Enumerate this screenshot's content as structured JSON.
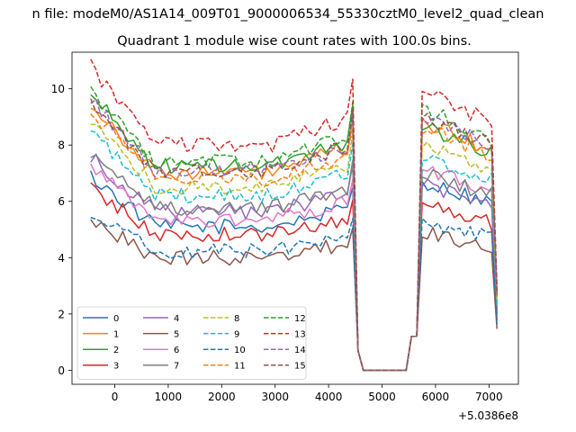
{
  "chart_data": {
    "type": "line",
    "suptitle": "n file: modeM0/AS1A14_009T01_9000006534_55330cztM0_level2_quad_clean",
    "title": "Quadrant 1 module wise count rates with 100.0s bins.",
    "xlabel": "",
    "ylabel": "",
    "x_offset_label": "+5.0386e8",
    "xlim": [
      -800,
      7550
    ],
    "ylim": [
      -0.5,
      11.3
    ],
    "xticks": [
      0,
      1000,
      2000,
      3000,
      4000,
      5000,
      6000,
      7000
    ],
    "yticks": [
      0,
      2,
      4,
      6,
      8,
      10
    ],
    "grid": false,
    "legend": {
      "placement": "lower-left",
      "columns": 4
    },
    "time_bins": {
      "start": -450,
      "step": 100,
      "count": 77
    },
    "gap": {
      "from": 4550,
      "to": 5550,
      "value": 0
    },
    "series": [
      {
        "name": "0",
        "color": "#1f77b4",
        "style": "solid",
        "base": 6.9,
        "rise": 6.7
      },
      {
        "name": "1",
        "color": "#ff7f0e",
        "style": "solid",
        "base": 9.5,
        "rise": 8.8
      },
      {
        "name": "2",
        "color": "#2ca02c",
        "style": "solid",
        "base": 9.8,
        "rise": 8.7
      },
      {
        "name": "3",
        "color": "#d62728",
        "style": "solid",
        "base": 6.5,
        "rise": 5.9
      },
      {
        "name": "4",
        "color": "#9467bd",
        "style": "solid",
        "base": 7.6,
        "rise": 6.6
      },
      {
        "name": "5",
        "color": "#8c564b",
        "style": "solid",
        "base": 5.4,
        "rise": 4.9
      },
      {
        "name": "6",
        "color": "#e377c2",
        "style": "solid",
        "base": 7.2,
        "rise": 7.2
      },
      {
        "name": "7",
        "color": "#7f7f7f",
        "style": "solid",
        "base": 7.8,
        "rise": 7.0
      },
      {
        "name": "8",
        "color": "#bcbd22",
        "style": "dashed",
        "base": 8.8,
        "rise": 8.0
      },
      {
        "name": "9",
        "color": "#17becf",
        "style": "dashed",
        "base": 8.4,
        "rise": 7.6
      },
      {
        "name": "10",
        "color": "#1f77b4",
        "style": "dashed",
        "base": 5.7,
        "rise": 5.3
      },
      {
        "name": "11",
        "color": "#ff7f0e",
        "style": "dashed",
        "base": 9.2,
        "rise": 8.6
      },
      {
        "name": "12",
        "color": "#2ca02c",
        "style": "dashed",
        "base": 10.0,
        "rise": 9.3
      },
      {
        "name": "13",
        "color": "#d62728",
        "style": "dashed",
        "base": 10.8,
        "rise": 9.9
      },
      {
        "name": "14",
        "color": "#9467bd",
        "style": "dashed",
        "base": 9.6,
        "rise": 9.0
      },
      {
        "name": "15",
        "color": "#8c564b",
        "style": "dashed",
        "base": 9.6,
        "rise": 9.0
      }
    ]
  }
}
